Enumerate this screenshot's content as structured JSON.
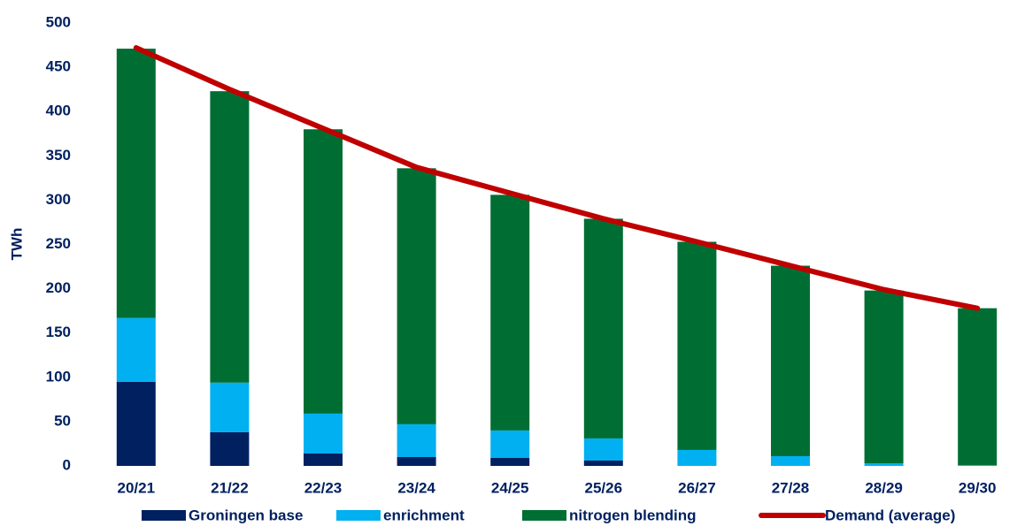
{
  "chart_data": {
    "type": "stacked_bar_line",
    "ylabel": "TWh",
    "categories": [
      "20/21",
      "21/22",
      "22/23",
      "23/24",
      "24/25",
      "25/26",
      "26/27",
      "27/28",
      "28/29",
      "29/30"
    ],
    "series": [
      {
        "name": "Groningen base",
        "color": "#002060",
        "kind": "bar",
        "values": [
          95,
          38,
          14,
          10,
          9,
          6,
          0,
          0,
          0,
          0
        ]
      },
      {
        "name": "enrichment",
        "color": "#00b0f0",
        "kind": "bar",
        "values": [
          72,
          56,
          45,
          37,
          31,
          25,
          18,
          11,
          3,
          1
        ]
      },
      {
        "name": "nitrogen blending",
        "color": "#006e33",
        "kind": "bar",
        "values": [
          304,
          329,
          321,
          289,
          266,
          248,
          235,
          215,
          195,
          177
        ]
      },
      {
        "name": "Demand (average)",
        "color": "#c00000",
        "kind": "line",
        "values": [
          472,
          425,
          381,
          337,
          308,
          279,
          253,
          226,
          199,
          178
        ]
      }
    ],
    "ylim": [
      0,
      500
    ],
    "yticks": [
      0,
      50,
      100,
      150,
      200,
      250,
      300,
      350,
      400,
      450,
      500
    ],
    "legend": "bottom"
  }
}
